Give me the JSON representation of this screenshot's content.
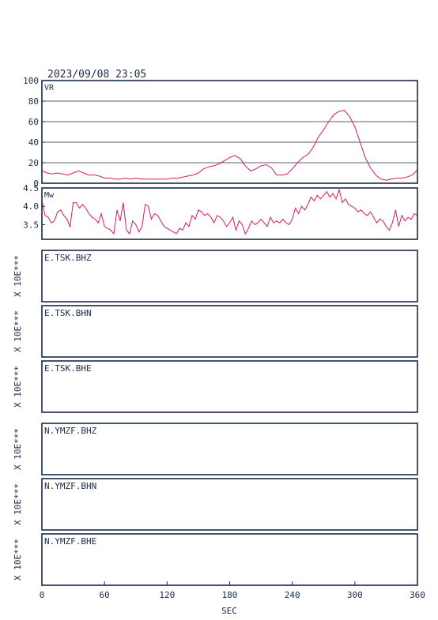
{
  "timestamp": "2023/09/08 23:05",
  "colors": {
    "frame": "#1a2a4a",
    "trace": "#d81b60",
    "grid": "#1a2a4a"
  },
  "x_axis": {
    "label": "SEC",
    "ticks": [
      0,
      60,
      120,
      180,
      240,
      300,
      360
    ],
    "range": [
      0,
      360
    ]
  },
  "chart_data": [
    {
      "type": "line",
      "title": "VR",
      "ylim": [
        0,
        100
      ],
      "yticks": [
        0,
        20,
        40,
        60,
        80,
        100
      ],
      "grid": true,
      "series": [
        {
          "x": [
            0,
            5,
            10,
            15,
            20,
            25,
            30,
            35,
            40,
            45,
            50,
            55,
            60,
            65,
            70,
            75,
            80,
            85,
            90,
            95,
            100,
            105,
            110,
            115,
            120,
            125,
            130,
            135,
            140,
            145,
            150,
            155,
            160,
            165,
            170,
            175,
            180,
            185,
            190,
            195,
            200,
            205,
            210,
            215,
            220,
            225,
            230,
            235,
            240,
            245,
            250,
            255,
            260,
            265,
            270,
            275,
            280,
            285,
            290,
            295,
            300,
            305,
            310,
            315,
            320,
            325,
            330,
            335,
            340,
            345,
            350,
            355,
            360
          ],
          "y": [
            12,
            10,
            9,
            10,
            9,
            8,
            10,
            12,
            10,
            8,
            8,
            7,
            5,
            5,
            4,
            4,
            5,
            4,
            5,
            4,
            4,
            4,
            4,
            4,
            4,
            5,
            5,
            6,
            7,
            8,
            10,
            14,
            16,
            17,
            19,
            22,
            25,
            27,
            24,
            17,
            12,
            14,
            17,
            18,
            15,
            8,
            8,
            9,
            14,
            20,
            25,
            28,
            35,
            45,
            52,
            60,
            67,
            70,
            71,
            65,
            55,
            40,
            25,
            15,
            8,
            4,
            3,
            4,
            5,
            5,
            6,
            8,
            13
          ]
        }
      ]
    },
    {
      "type": "line",
      "title": "Mw",
      "ylim": [
        3.1,
        4.5
      ],
      "yticks": [
        3.5,
        4.0,
        4.5
      ],
      "grid": false,
      "series": [
        {
          "x": [
            0,
            3,
            6,
            9,
            12,
            15,
            18,
            21,
            24,
            27,
            30,
            33,
            36,
            39,
            42,
            45,
            48,
            51,
            54,
            57,
            60,
            63,
            66,
            69,
            72,
            75,
            78,
            81,
            84,
            87,
            90,
            93,
            96,
            99,
            102,
            105,
            108,
            111,
            114,
            117,
            120,
            123,
            126,
            129,
            132,
            135,
            138,
            141,
            144,
            147,
            150,
            153,
            156,
            159,
            162,
            165,
            168,
            171,
            174,
            177,
            180,
            183,
            186,
            189,
            192,
            195,
            198,
            201,
            204,
            207,
            210,
            213,
            216,
            219,
            222,
            225,
            228,
            231,
            234,
            237,
            240,
            243,
            246,
            249,
            252,
            255,
            258,
            261,
            264,
            267,
            270,
            273,
            276,
            279,
            282,
            285,
            288,
            291,
            294,
            297,
            300,
            303,
            306,
            309,
            312,
            315,
            318,
            321,
            324,
            327,
            330,
            333,
            336,
            339,
            342,
            345,
            348,
            351,
            354,
            357,
            360
          ],
          "y": [
            4.15,
            3.75,
            3.7,
            3.55,
            3.6,
            3.85,
            3.9,
            3.75,
            3.65,
            3.45,
            4.1,
            4.1,
            3.95,
            4.05,
            3.95,
            3.8,
            3.7,
            3.65,
            3.55,
            3.8,
            3.45,
            3.4,
            3.35,
            3.25,
            3.9,
            3.6,
            4.1,
            3.35,
            3.25,
            3.6,
            3.5,
            3.3,
            3.45,
            4.05,
            4.0,
            3.65,
            3.8,
            3.75,
            3.6,
            3.45,
            3.4,
            3.35,
            3.3,
            3.25,
            3.4,
            3.35,
            3.55,
            3.45,
            3.75,
            3.65,
            3.9,
            3.85,
            3.75,
            3.8,
            3.7,
            3.55,
            3.75,
            3.7,
            3.6,
            3.45,
            3.55,
            3.7,
            3.35,
            3.6,
            3.5,
            3.25,
            3.4,
            3.6,
            3.5,
            3.55,
            3.65,
            3.55,
            3.45,
            3.7,
            3.55,
            3.6,
            3.55,
            3.65,
            3.55,
            3.5,
            3.65,
            3.95,
            3.8,
            4.0,
            3.9,
            4.05,
            4.25,
            4.15,
            4.3,
            4.2,
            4.3,
            4.4,
            4.25,
            4.35,
            4.2,
            4.45,
            4.1,
            4.2,
            4.05,
            4.0,
            3.95,
            3.85,
            3.9,
            3.8,
            3.75,
            3.85,
            3.7,
            3.55,
            3.65,
            3.6,
            3.45,
            3.35,
            3.55,
            3.9,
            3.45,
            3.75,
            3.6,
            3.7,
            3.65,
            3.8,
            3.75
          ]
        }
      ]
    }
  ],
  "stations": [
    {
      "label": "E.TSK.BHZ",
      "scale": "X 10E***"
    },
    {
      "label": "E.TSK.BHN",
      "scale": "X 10E***"
    },
    {
      "label": "E.TSK.BHE",
      "scale": "X 10E***"
    },
    {
      "label": "N.YMZF.BHZ",
      "scale": "X 10E***"
    },
    {
      "label": "N.YMZF.BHN",
      "scale": "X 10E***"
    },
    {
      "label": "N.YMZF.BHE",
      "scale": "X 10E***"
    }
  ]
}
